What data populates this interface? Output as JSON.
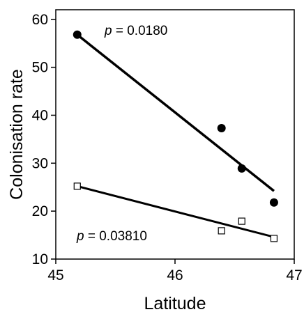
{
  "chart_data": {
    "type": "scatter",
    "xlabel": "Latitude",
    "ylabel": "Colonisation rate",
    "xlim": [
      45,
      47
    ],
    "ylim": [
      10,
      62
    ],
    "xticks": [
      45,
      46,
      47
    ],
    "yticks": [
      10,
      20,
      30,
      40,
      50,
      60
    ],
    "grid": false,
    "legend": "none",
    "series": [
      {
        "marker": "filled-circle",
        "color": "#000000",
        "points": [
          {
            "x": 45.18,
            "y": 56.8
          },
          {
            "x": 46.39,
            "y": 37.3
          },
          {
            "x": 46.56,
            "y": 28.9
          },
          {
            "x": 46.83,
            "y": 21.8
          }
        ],
        "fit": {
          "x": [
            45.18,
            46.83
          ],
          "y": [
            56.8,
            24.2
          ]
        },
        "p_label": "p",
        "p_value": " = 0.0180"
      },
      {
        "marker": "open-square",
        "color": "#000000",
        "points": [
          {
            "x": 45.18,
            "y": 25.2
          },
          {
            "x": 46.39,
            "y": 15.9
          },
          {
            "x": 46.56,
            "y": 17.9
          },
          {
            "x": 46.83,
            "y": 14.3
          }
        ],
        "fit": {
          "x": [
            45.18,
            46.83
          ],
          "y": [
            25.2,
            14.6
          ]
        },
        "p_label": "p",
        "p_value": " = 0.03810"
      }
    ]
  }
}
